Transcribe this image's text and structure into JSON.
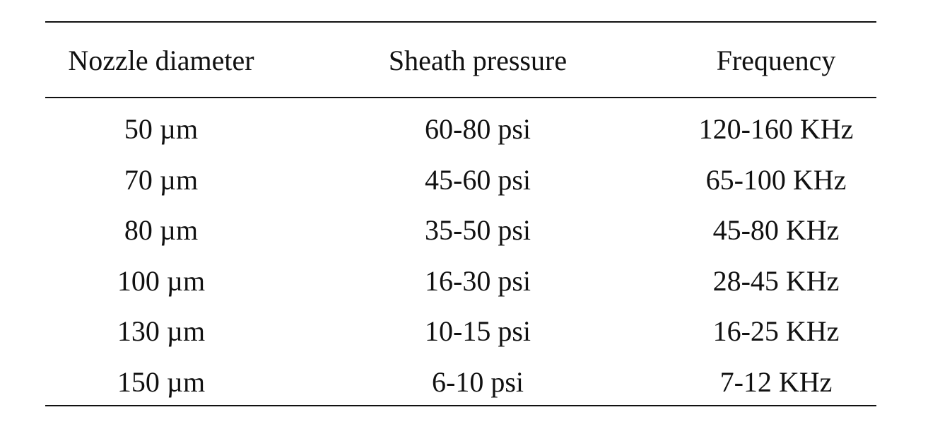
{
  "table": {
    "header": [
      "Nozzle diameter",
      "Sheath pressure",
      "Frequency"
    ],
    "rows": [
      [
        "50 µm",
        "60-80 psi",
        "120-160 KHz"
      ],
      [
        "70 µm",
        "45-60 psi",
        "65-100 KHz"
      ],
      [
        "80 µm",
        "35-50 psi",
        "45-80 KHz"
      ],
      [
        "100 µm",
        "16-30 psi",
        "28-45 KHz"
      ],
      [
        "130 µm",
        "10-15 psi",
        "16-25 KHz"
      ],
      [
        "150 µm",
        "6-10 psi",
        "7-12 KHz"
      ]
    ]
  }
}
